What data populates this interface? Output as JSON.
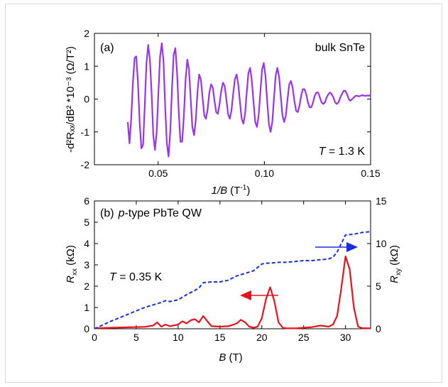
{
  "colors": {
    "purple": "#9933ee",
    "red": "#e8141c",
    "blue": "#1a2ee0",
    "axis": "#000000"
  },
  "chart_data": [
    {
      "id": "a",
      "type": "line",
      "panel_label": "(a)",
      "sample_label": "bulk SnTe",
      "temperature_var": "T",
      "temperature_value": " = 1.3 K",
      "xlabel": {
        "var": "1/B",
        "unit": " (T",
        "exp": "-1",
        "close": ")"
      },
      "ylabel": "-d²Rₓₓ/dB² *10⁻³ (Ω/T²)",
      "xlim": [
        0.02,
        0.15
      ],
      "ylim": [
        -2,
        2
      ],
      "xticks": [
        "0.05",
        "0.10",
        "0.15"
      ],
      "xtick_values": [
        0.05,
        0.1,
        0.15
      ],
      "yticks": [
        "-2",
        "-1",
        "0",
        "1",
        "2"
      ],
      "ytick_values": [
        -2,
        -1,
        0,
        1,
        2
      ],
      "series": [
        {
          "color": "#9933ee",
          "x": [
            0.0357,
            0.0365,
            0.0373,
            0.0381,
            0.0389,
            0.0397,
            0.0405,
            0.0413,
            0.0421,
            0.0429,
            0.0437,
            0.0445,
            0.0453,
            0.0461,
            0.0469,
            0.0477,
            0.0485,
            0.0493,
            0.0501,
            0.0509,
            0.0517,
            0.0525,
            0.0533,
            0.0541,
            0.0549,
            0.0557,
            0.0565,
            0.0573,
            0.0581,
            0.0589,
            0.0597,
            0.0605,
            0.0613,
            0.0621,
            0.0629,
            0.0637,
            0.0645,
            0.0653,
            0.0661,
            0.0669,
            0.0677,
            0.0685,
            0.0693,
            0.0701,
            0.0709,
            0.0717,
            0.0725,
            0.0733,
            0.0741,
            0.0749,
            0.0757,
            0.0765,
            0.0773,
            0.0781,
            0.0789,
            0.0797,
            0.0805,
            0.0813,
            0.0821,
            0.0829,
            0.0837,
            0.0845,
            0.0853,
            0.0861,
            0.0869,
            0.0877,
            0.0885,
            0.0893,
            0.0901,
            0.0909,
            0.0917,
            0.0925,
            0.0933,
            0.0941,
            0.0949,
            0.0957,
            0.0965,
            0.0973,
            0.0981,
            0.0989,
            0.0997,
            0.1005,
            0.1013,
            0.1021,
            0.1029,
            0.1037,
            0.1045,
            0.1053,
            0.1061,
            0.1069,
            0.1077,
            0.1085,
            0.1093,
            0.1101,
            0.1109,
            0.1117,
            0.1125,
            0.1133,
            0.1141,
            0.1149,
            0.1157,
            0.1165,
            0.1173,
            0.1181,
            0.1189,
            0.1197,
            0.1205,
            0.1213,
            0.1221,
            0.1229,
            0.1237,
            0.1245,
            0.1253,
            0.1261,
            0.1269,
            0.1277,
            0.1285,
            0.1293,
            0.1301,
            0.1309,
            0.1317,
            0.1325,
            0.1333,
            0.1341,
            0.1349,
            0.1357,
            0.1365,
            0.1373,
            0.1381,
            0.1389,
            0.1397,
            0.1405,
            0.1413,
            0.1421,
            0.1429,
            0.1437,
            0.1445,
            0.1453,
            0.1461,
            0.1469,
            0.1477,
            0.1485,
            0.1493,
            0.15
          ],
          "y": [
            -0.7,
            -1.35,
            -0.6,
            0.5,
            1.25,
            1.3,
            0.5,
            -0.7,
            -1.5,
            -1.4,
            -0.2,
            1.1,
            1.65,
            1.2,
            0.2,
            -1.1,
            -1.55,
            -1.0,
            0.2,
            1.3,
            1.7,
            1.15,
            -0.2,
            -1.35,
            -1.75,
            -1.0,
            0.3,
            1.35,
            1.55,
            0.8,
            -0.4,
            -1.3,
            -1.3,
            -0.5,
            0.6,
            1.2,
            0.9,
            0.0,
            -0.85,
            -1.1,
            -0.65,
            0.2,
            0.75,
            0.6,
            0.05,
            -0.5,
            -0.6,
            -0.3,
            0.2,
            0.45,
            0.35,
            -0.05,
            -0.4,
            -0.45,
            -0.15,
            0.25,
            0.5,
            0.4,
            0.0,
            -0.45,
            -0.6,
            -0.35,
            0.15,
            0.6,
            0.75,
            0.45,
            -0.1,
            -0.6,
            -0.75,
            -0.45,
            0.2,
            0.8,
            0.95,
            0.55,
            -0.1,
            -0.7,
            -0.85,
            -0.5,
            0.2,
            0.9,
            1.1,
            0.7,
            -0.05,
            -0.75,
            -1.0,
            -0.7,
            0.0,
            0.7,
            0.95,
            0.7,
            0.1,
            -0.5,
            -0.7,
            -0.5,
            0.0,
            0.45,
            0.55,
            0.35,
            -0.05,
            -0.35,
            -0.4,
            -0.2,
            0.1,
            0.3,
            0.3,
            0.15,
            -0.1,
            -0.25,
            -0.25,
            -0.1,
            0.1,
            0.2,
            0.2,
            0.05,
            -0.1,
            -0.15,
            -0.1,
            0.05,
            0.15,
            0.2,
            0.15,
            0.05,
            -0.1,
            -0.15,
            -0.1,
            0.05,
            0.15,
            0.25,
            0.25,
            0.15,
            0.0,
            -0.05,
            0.0,
            0.05,
            0.1,
            0.1,
            0.08,
            0.1,
            0.12,
            0.1,
            0.1,
            0.11,
            0.1,
            0.12
          ]
        }
      ]
    },
    {
      "id": "b",
      "type": "line",
      "panel_label": "(b)",
      "sample_label_italic": "p",
      "sample_label_rest": "-type PbTe QW",
      "temperature_var": "T",
      "temperature_value": " = 0.35 K",
      "xlabel": {
        "var": "B",
        "unit": " (T)"
      },
      "ylabel_left": {
        "var": "R",
        "sub": "xx",
        "unit": " (kΩ)"
      },
      "ylabel_right": {
        "var": "R",
        "sub": "xy",
        "unit": " (kΩ)"
      },
      "xlim": [
        0,
        33
      ],
      "ylim_left": [
        0,
        6
      ],
      "ylim_right": [
        0,
        15
      ],
      "xticks": [
        "0",
        "5",
        "10",
        "15",
        "20",
        "25",
        "30"
      ],
      "xtick_values": [
        0,
        5,
        10,
        15,
        20,
        25,
        30
      ],
      "yticks_left": [
        "0",
        "1",
        "2",
        "3",
        "4",
        "5",
        "6"
      ],
      "ytick_left_values": [
        0,
        1,
        2,
        3,
        4,
        5,
        6
      ],
      "yticks_right": [
        "0",
        "5",
        "10",
        "15"
      ],
      "ytick_right_values": [
        0,
        5,
        10,
        15
      ],
      "series": [
        {
          "axis": "left",
          "style": "solid",
          "color": "#e8141c",
          "x": [
            0,
            2,
            4,
            6,
            7,
            7.5,
            8,
            8.5,
            9,
            10,
            10.5,
            11,
            11.5,
            12,
            12.5,
            13,
            13.5,
            14,
            15,
            16,
            17,
            17.5,
            18,
            18.5,
            19,
            19.5,
            20,
            20.5,
            21,
            21.5,
            22,
            22.5,
            23,
            24,
            25,
            26,
            27,
            28,
            28.5,
            29,
            29.5,
            30,
            30.5,
            31,
            31.5,
            32,
            33
          ],
          "y": [
            0.02,
            0.05,
            0.07,
            0.09,
            0.15,
            0.3,
            0.1,
            0.2,
            0.12,
            0.2,
            0.35,
            0.25,
            0.4,
            0.45,
            0.3,
            0.6,
            0.35,
            0.12,
            0.1,
            0.12,
            0.25,
            0.42,
            0.3,
            0.1,
            0.05,
            0.1,
            0.5,
            1.4,
            1.95,
            1.3,
            0.3,
            0.05,
            0.02,
            0.02,
            0.05,
            0.08,
            0.15,
            0.1,
            0.2,
            0.6,
            1.9,
            3.4,
            2.8,
            1.0,
            0.1,
            0.03,
            0.02
          ]
        },
        {
          "axis": "right",
          "style": "dashed",
          "color": "#1a2ee0",
          "x": [
            0,
            2,
            4,
            6,
            8,
            8.5,
            9,
            9.5,
            10,
            11,
            12,
            12.5,
            13,
            14,
            15,
            16,
            17,
            18,
            19,
            19.5,
            20,
            20.5,
            21,
            22,
            23,
            24,
            25,
            26,
            27,
            28,
            28.5,
            29,
            29.5,
            30,
            31,
            32,
            33
          ],
          "y": [
            0,
            0.9,
            1.7,
            2.5,
            3.1,
            3.3,
            3.2,
            3.3,
            3.4,
            4,
            4.5,
            4.8,
            5.4,
            5.5,
            5.5,
            5.7,
            6.2,
            6.5,
            6.8,
            7.2,
            7.6,
            7.7,
            7.7,
            7.8,
            7.8,
            7.9,
            8,
            8,
            8.1,
            8.2,
            8.4,
            9,
            10,
            11,
            11.1,
            11.3,
            11.4
          ]
        }
      ]
    }
  ]
}
